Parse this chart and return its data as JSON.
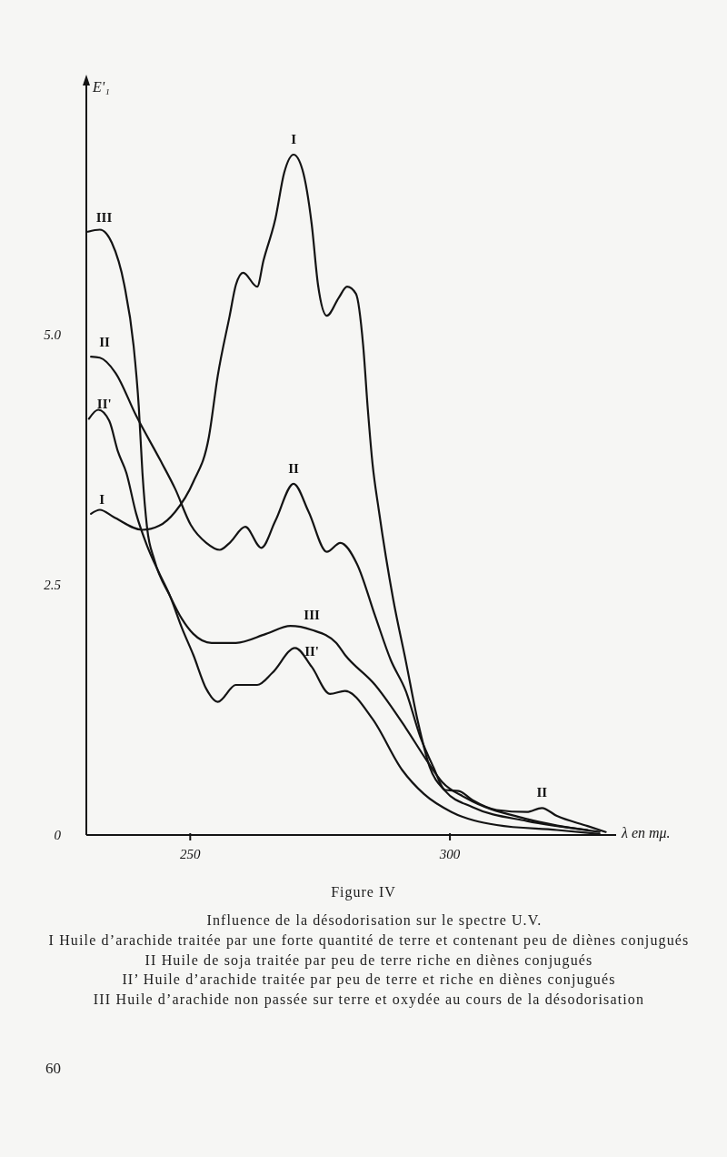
{
  "chart_data": {
    "type": "line",
    "title": "Figure IV",
    "subtitle": "Influence de la désodorisation sur le spectre U.V.",
    "xlabel": "λ en mμ.",
    "ylabel": "E'₁",
    "xlim": [
      230,
      332
    ],
    "xticks": [
      250,
      300
    ],
    "ylim": [
      0,
      7.5
    ],
    "yticks": [
      0,
      2.5,
      {
        "value": 5,
        "label": "5.0"
      }
    ],
    "series": [
      {
        "name": "I",
        "color": "#141414",
        "x": [
          230.9,
          232.6,
          235.2,
          240.8,
          244.0,
          247.1,
          250.6,
          253.6,
          255.3,
          257.6,
          258.8,
          260.2,
          262.9,
          264.1,
          266.4,
          268.1,
          269.9,
          271.6,
          273.4,
          274.6,
          276.3,
          278.6,
          280.2,
          281.9,
          283.3,
          284.2,
          285.1,
          286.3,
          289.1,
          291.5,
          293.8,
          296.1,
          299.1,
          304.3,
          314.8,
          326.5
        ],
        "values": [
          3.21,
          3.25,
          3.18,
          3.05,
          3.09,
          3.23,
          3.53,
          3.98,
          4.59,
          5.19,
          5.5,
          5.62,
          5.48,
          5.74,
          6.16,
          6.62,
          6.8,
          6.65,
          6.1,
          5.5,
          5.19,
          5.37,
          5.48,
          5.41,
          4.89,
          4.25,
          3.71,
          3.25,
          2.35,
          1.74,
          1.14,
          0.68,
          0.44,
          0.28,
          0.14,
          0.05
        ]
      },
      {
        "name": "II",
        "color": "#141414",
        "x": [
          230.9,
          232.6,
          235.6,
          239.6,
          244.3,
          247.1,
          250.1,
          253.1,
          255.7,
          257.6,
          260.6,
          263.7,
          266.4,
          269.9,
          272.8,
          276.3,
          278.9,
          282.1,
          285.6,
          288.6,
          291.5,
          294.3,
          296.8,
          299.1,
          301.7,
          304.3,
          309.0,
          314.8,
          317.7,
          320.6,
          326.5,
          330.0
        ],
        "values": [
          4.78,
          4.77,
          4.62,
          4.19,
          3.74,
          3.46,
          3.1,
          2.92,
          2.85,
          2.92,
          3.08,
          2.87,
          3.14,
          3.51,
          3.23,
          2.83,
          2.92,
          2.71,
          2.19,
          1.75,
          1.44,
          0.98,
          0.68,
          0.45,
          0.44,
          0.35,
          0.25,
          0.23,
          0.27,
          0.19,
          0.09,
          0.03
        ]
      },
      {
        "name": "II'",
        "color": "#141414",
        "x": [
          230.5,
          232.3,
          234.4,
          236.1,
          237.7,
          239.6,
          241.7,
          244.0,
          246.1,
          248.4,
          250.6,
          253.1,
          255.3,
          258.8,
          262.9,
          265.8,
          270.2,
          273.4,
          276.9,
          279.8,
          285.1,
          290.8,
          295.0,
          300.3,
          309.0,
          320.6,
          328.8
        ],
        "values": [
          4.16,
          4.25,
          4.14,
          3.83,
          3.62,
          3.21,
          2.89,
          2.62,
          2.39,
          2.07,
          1.8,
          1.46,
          1.33,
          1.5,
          1.5,
          1.62,
          1.87,
          1.68,
          1.41,
          1.44,
          1.16,
          0.65,
          0.41,
          0.23,
          0.1,
          0.05,
          0.01
        ]
      },
      {
        "name": "III",
        "color": "#141414",
        "x": [
          230.3,
          232.6,
          234.9,
          237.3,
          239.1,
          240.1,
          240.8,
          241.7,
          243.1,
          246.1,
          248.4,
          250.6,
          254.1,
          258.8,
          264.6,
          269.3,
          273.4,
          278.1,
          279.8,
          285.6,
          291.5,
          295.6,
          298.5,
          303.1,
          314.8,
          328.8
        ],
        "values": [
          6.03,
          6.05,
          5.92,
          5.5,
          4.89,
          4.28,
          3.62,
          3.07,
          2.75,
          2.39,
          2.16,
          2.01,
          1.92,
          1.92,
          2.01,
          2.09,
          2.05,
          1.92,
          1.8,
          1.5,
          1.07,
          0.74,
          0.53,
          0.37,
          0.16,
          0.03
        ]
      }
    ],
    "annotations": [
      {
        "text": "I",
        "x": 269.9,
        "y": 6.8
      },
      {
        "text": "II",
        "x": 269.9,
        "y": 3.51
      },
      {
        "text": "III",
        "x": 273.4,
        "y": 2.05
      },
      {
        "text": "II'",
        "x": 273.4,
        "y": 1.68
      },
      {
        "text": "II",
        "x": 317.7,
        "y": 0.27
      },
      "I Huile d’arachide traitée par une forte quantité de terre et contenant peu de diènes conjugués",
      "II Huile de soja traitée par peu de terre riche en diènes conjugués",
      "II’ Huile d’arachide traitée par peu de terre et riche en diènes conjugués",
      "III Huile d’arachide non passée sur terre et oxydée au cours de la désodorisation",
      "60"
    ]
  }
}
